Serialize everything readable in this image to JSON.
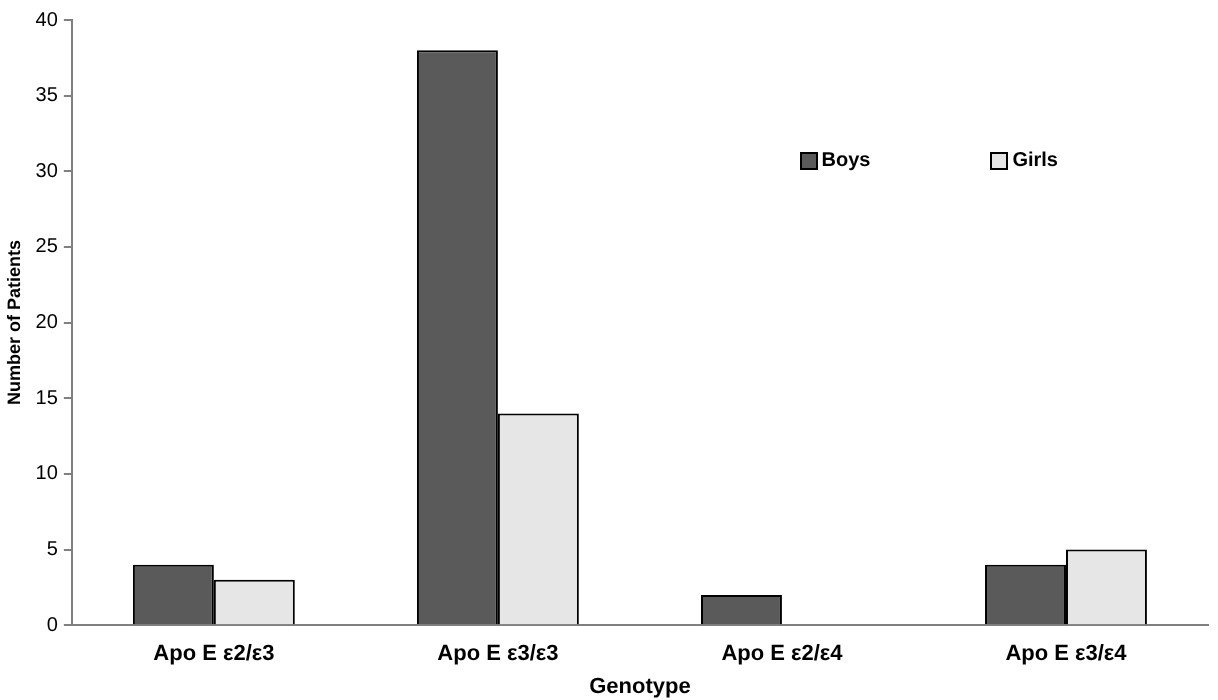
{
  "chart_data": {
    "type": "bar",
    "xlabel": "Genotype",
    "ylabel": "Number of Patients",
    "categories": [
      "Apo E ε2/ε3",
      "Apo E ε3/ε3",
      "Apo E ε2/ε4",
      "Apo E ε3/ε4"
    ],
    "series": [
      {
        "name": "Boys",
        "color": "#5a5a5a",
        "values": [
          4,
          38,
          2,
          4
        ]
      },
      {
        "name": "Girls",
        "color": "#e6e6e6",
        "values": [
          3,
          14,
          0,
          5
        ]
      }
    ],
    "ylim": [
      0,
      40
    ],
    "yticks": [
      0,
      5,
      10,
      15,
      20,
      25,
      30,
      35,
      40
    ],
    "grid": false,
    "legend": "top right"
  }
}
